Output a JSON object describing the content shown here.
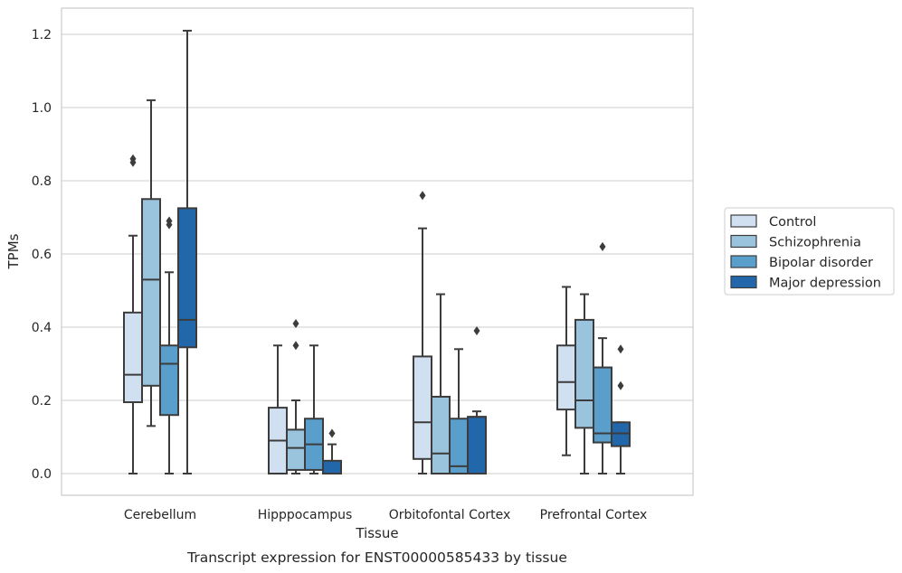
{
  "chart_data": {
    "type": "box",
    "ylabel": "TPMs",
    "xlabel": "Tissue",
    "caption": "Transcript expression for ENST00000585433 by tissue",
    "ylim": [
      -0.06,
      1.27
    ],
    "yticks": [
      "0.0",
      "0.2",
      "0.4",
      "0.6",
      "0.8",
      "1.0",
      "1.2"
    ],
    "grid": true,
    "legend_position": "right, outside plot",
    "categories": [
      "Cerebellum",
      "Hipppocampus",
      "Orbitofontal Cortex",
      "Prefrontal Cortex"
    ],
    "series": [
      {
        "name": "Control",
        "color": "#d0e0f0",
        "boxes": [
          {
            "whisker_low": 0.0,
            "q1": 0.195,
            "median": 0.27,
            "q3": 0.44,
            "whisker_high": 0.65,
            "outliers": [
              0.85,
              0.86
            ]
          },
          {
            "whisker_low": 0.0,
            "q1": 0.0,
            "median": 0.09,
            "q3": 0.18,
            "whisker_high": 0.35,
            "outliers": []
          },
          {
            "whisker_low": 0.0,
            "q1": 0.04,
            "median": 0.14,
            "q3": 0.32,
            "whisker_high": 0.67,
            "outliers": [
              0.76
            ]
          },
          {
            "whisker_low": 0.05,
            "q1": 0.175,
            "median": 0.25,
            "q3": 0.35,
            "whisker_high": 0.51,
            "outliers": []
          }
        ]
      },
      {
        "name": "Schizophrenia",
        "color": "#9ac3de",
        "boxes": [
          {
            "whisker_low": 0.13,
            "q1": 0.24,
            "median": 0.53,
            "q3": 0.75,
            "whisker_high": 1.02,
            "outliers": []
          },
          {
            "whisker_low": 0.0,
            "q1": 0.01,
            "median": 0.07,
            "q3": 0.12,
            "whisker_high": 0.2,
            "outliers": [
              0.35,
              0.41
            ]
          },
          {
            "whisker_low": 0.0,
            "q1": 0.0,
            "median": 0.055,
            "q3": 0.21,
            "whisker_high": 0.49,
            "outliers": []
          },
          {
            "whisker_low": 0.0,
            "q1": 0.125,
            "median": 0.2,
            "q3": 0.42,
            "whisker_high": 0.49,
            "outliers": []
          }
        ]
      },
      {
        "name": "Bipolar disorder",
        "color": "#5a9ecc",
        "boxes": [
          {
            "whisker_low": 0.0,
            "q1": 0.16,
            "median": 0.3,
            "q3": 0.35,
            "whisker_high": 0.55,
            "outliers": [
              0.68,
              0.69
            ]
          },
          {
            "whisker_low": 0.0,
            "q1": 0.01,
            "median": 0.08,
            "q3": 0.15,
            "whisker_high": 0.35,
            "outliers": []
          },
          {
            "whisker_low": 0.0,
            "q1": 0.0,
            "median": 0.02,
            "q3": 0.15,
            "whisker_high": 0.34,
            "outliers": []
          },
          {
            "whisker_low": 0.0,
            "q1": 0.085,
            "median": 0.11,
            "q3": 0.29,
            "whisker_high": 0.37,
            "outliers": [
              0.62
            ]
          }
        ]
      },
      {
        "name": "Major depression",
        "color": "#2267aa",
        "boxes": [
          {
            "whisker_low": 0.0,
            "q1": 0.345,
            "median": 0.42,
            "q3": 0.725,
            "whisker_high": 1.21,
            "outliers": []
          },
          {
            "whisker_low": 0.0,
            "q1": 0.0,
            "median": 0.0,
            "q3": 0.035,
            "whisker_high": 0.08,
            "outliers": [
              0.11
            ]
          },
          {
            "whisker_low": 0.0,
            "q1": 0.0,
            "median": 0.155,
            "q3": 0.155,
            "whisker_high": 0.17,
            "outliers": [
              0.39
            ]
          },
          {
            "whisker_low": 0.0,
            "q1": 0.075,
            "median": 0.11,
            "q3": 0.14,
            "whisker_high": 0.14,
            "outliers": [
              0.24,
              0.34
            ]
          }
        ]
      }
    ]
  }
}
